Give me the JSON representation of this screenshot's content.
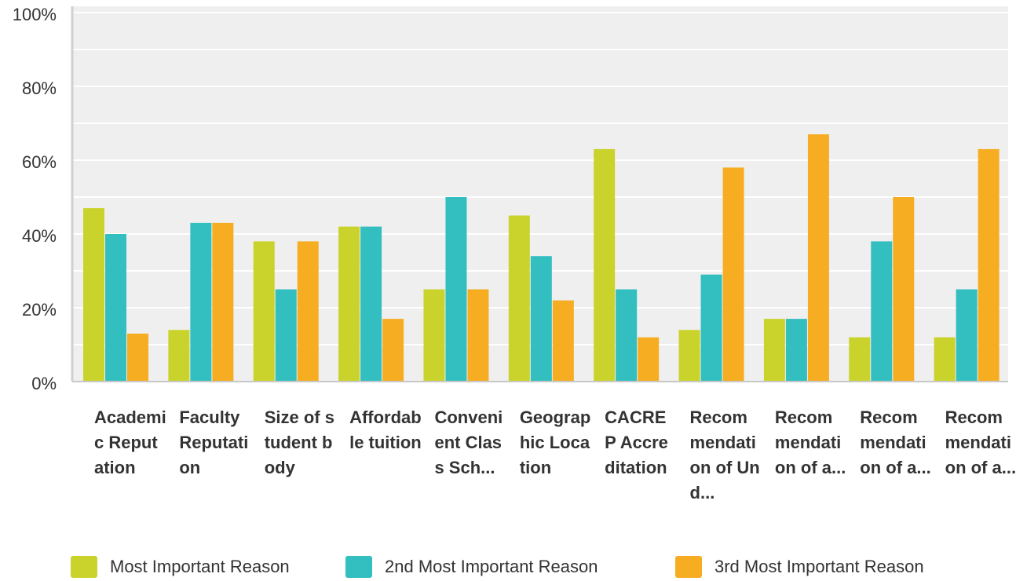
{
  "chart_data": {
    "type": "bar",
    "categories": [
      "Academic Reputation",
      "Faculty Reputation",
      "Size of student body",
      "Affordable tuition",
      "Convenient Class Sch...",
      "Geographic Location",
      "CACREP Accreditation",
      "Recommendation of Und...",
      "Recommendation of a...",
      "Recommendation of a...",
      "Recommendation of a..."
    ],
    "series": [
      {
        "name": "Most Important Reason",
        "color": "#cad32b",
        "values": [
          47,
          14,
          38,
          42,
          25,
          45,
          63,
          14,
          17,
          12,
          12
        ]
      },
      {
        "name": "2nd Most Important Reason",
        "color": "#33bec0",
        "values": [
          40,
          43,
          25,
          42,
          50,
          34,
          25,
          29,
          17,
          38,
          25
        ]
      },
      {
        "name": "3rd Most Important Reason",
        "color": "#f6ad22",
        "values": [
          13,
          43,
          38,
          17,
          25,
          22,
          12,
          58,
          67,
          50,
          63
        ]
      }
    ],
    "ylim": [
      0,
      100
    ],
    "yticks": [
      {
        "value": 0,
        "label": "0%"
      },
      {
        "value": 20,
        "label": "20%"
      },
      {
        "value": 40,
        "label": "40%"
      },
      {
        "value": 60,
        "label": "60%"
      },
      {
        "value": 80,
        "label": "80%"
      },
      {
        "value": 100,
        "label": "100%"
      }
    ],
    "minor_yticks": [
      10,
      30,
      50,
      70,
      90
    ],
    "grid": true,
    "legend": "bottom"
  }
}
